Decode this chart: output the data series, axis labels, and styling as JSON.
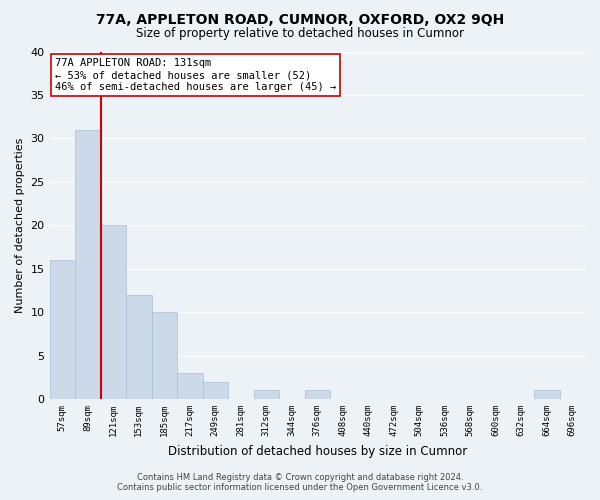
{
  "title": "77A, APPLETON ROAD, CUMNOR, OXFORD, OX2 9QH",
  "subtitle": "Size of property relative to detached houses in Cumnor",
  "xlabel": "Distribution of detached houses by size in Cumnor",
  "ylabel": "Number of detached properties",
  "bins": [
    "57sqm",
    "89sqm",
    "121sqm",
    "153sqm",
    "185sqm",
    "217sqm",
    "249sqm",
    "281sqm",
    "312sqm",
    "344sqm",
    "376sqm",
    "408sqm",
    "440sqm",
    "472sqm",
    "504sqm",
    "536sqm",
    "568sqm",
    "600sqm",
    "632sqm",
    "664sqm",
    "696sqm"
  ],
  "values": [
    16,
    31,
    20,
    12,
    10,
    3,
    2,
    0,
    1,
    0,
    1,
    0,
    0,
    0,
    0,
    0,
    0,
    0,
    0,
    1,
    0
  ],
  "bar_color": "#ccd9e8",
  "bar_edge_color": "#a8bfd4",
  "vline_color": "#cc0000",
  "annotation_text": "77A APPLETON ROAD: 131sqm\n← 53% of detached houses are smaller (52)\n46% of semi-detached houses are larger (45) →",
  "annotation_box_color": "#ffffff",
  "annotation_box_edge": "#cc0000",
  "ylim": [
    0,
    40
  ],
  "yticks": [
    0,
    5,
    10,
    15,
    20,
    25,
    30,
    35,
    40
  ],
  "footer_line1": "Contains HM Land Registry data © Crown copyright and database right 2024.",
  "footer_line2": "Contains public sector information licensed under the Open Government Licence v3.0.",
  "background_color": "#edf2f7",
  "grid_color": "#ffffff"
}
